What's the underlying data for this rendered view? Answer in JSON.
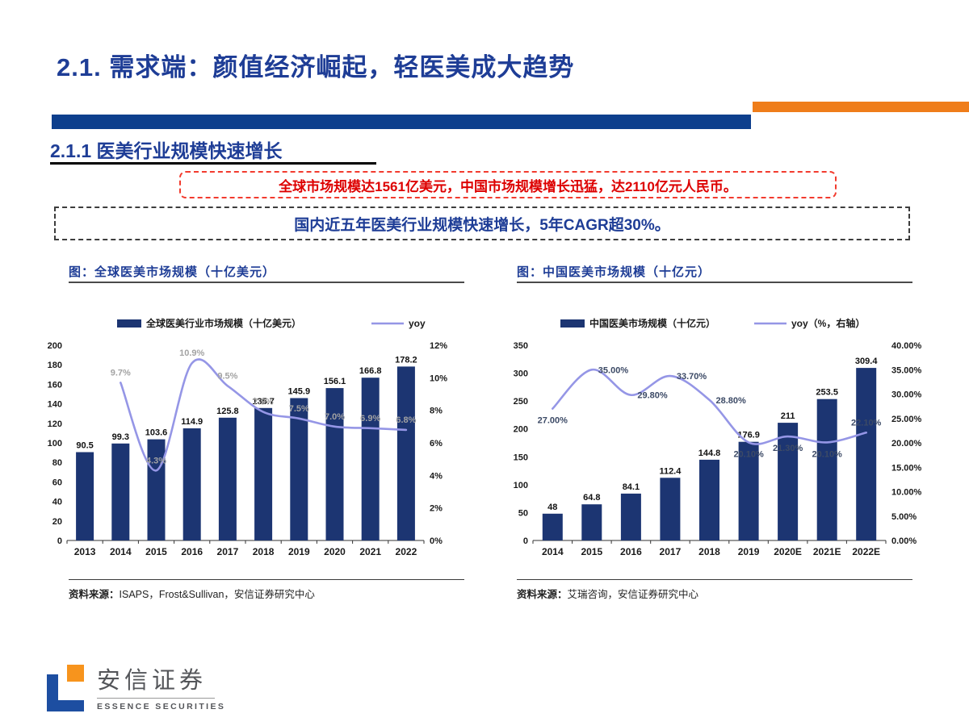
{
  "slide": {
    "title": "2.1. 需求端：颜值经济崛起，轻医美成大趋势",
    "section_heading": "2.1.1 医美行业规模快速增长",
    "callout_red": "全球市场规模达1561亿美元，中国市场规模增长迅猛，达2110亿元人民币。",
    "callout_navy": "国内近五年医美行业规模快速增长，5年CAGR超30%。",
    "footer_logo": {
      "name": "安信证券",
      "subname": "ESSENCE SECURITIES"
    },
    "colors": {
      "title_blue": "#1e3d96",
      "accent_bar_blue": "#0d3f8d",
      "accent_bar_orange": "#ef7d1a",
      "callout_red": "#dd0000",
      "bar_navy": "#1c3572",
      "line_periwinkle": "#9596e6"
    }
  },
  "chart_data": [
    {
      "type": "bar+line",
      "title": "图：全球医美市场规模（十亿美元）",
      "categories": [
        "2013",
        "2014",
        "2015",
        "2016",
        "2017",
        "2018",
        "2019",
        "2020",
        "2021",
        "2022"
      ],
      "bars": {
        "name": "全球医美行业市场规模（十亿美元）",
        "values": [
          90.5,
          99.3,
          103.6,
          114.9,
          125.8,
          135.7,
          145.9,
          156.1,
          166.8,
          178.2
        ],
        "labels": [
          "90.5",
          "99.3",
          "103.6",
          "114.9",
          "125.8",
          "135.7",
          "145.9",
          "156.1",
          "166.8",
          "178.2"
        ],
        "color": "#1c3572",
        "axis": "left"
      },
      "line": {
        "name": "yoy",
        "values": [
          null,
          9.7,
          4.3,
          10.9,
          9.5,
          7.9,
          7.5,
          7.0,
          6.9,
          6.8
        ],
        "labels": [
          "",
          "9.7%",
          "4.3%",
          "10.9%",
          "9.5%",
          "7.9%",
          "7.5%",
          "7.0%",
          "6.9%",
          "6.8%"
        ],
        "label_pos": [
          "",
          "above",
          "above",
          "above",
          "above",
          "above",
          "above",
          "above",
          "above",
          "above"
        ],
        "color": "#9596e6",
        "label_color": "#a3a3a3",
        "axis": "right"
      },
      "left_axis": {
        "min": 0,
        "max": 200,
        "step": 20,
        "decimals": 0,
        "suffix": ""
      },
      "right_axis": {
        "min": 0,
        "max": 12,
        "step": 2,
        "decimals": 0,
        "suffix": "%"
      },
      "grid": false,
      "legend_position": "top",
      "source_label": "资料来源：",
      "source": "ISAPS，Frost&Sullivan，安信证券研究中心"
    },
    {
      "type": "bar+line",
      "title": "图：中国医美市场规模（十亿元）",
      "categories": [
        "2014",
        "2015",
        "2016",
        "2017",
        "2018",
        "2019",
        "2020E",
        "2021E",
        "2022E"
      ],
      "bars": {
        "name": "中国医美市场规模（十亿元）",
        "values": [
          48,
          64.8,
          84.1,
          112.4,
          144.8,
          176.9,
          211,
          253.5,
          309.4
        ],
        "labels": [
          "48",
          "64.8",
          "84.1",
          "112.4",
          "144.8",
          "176.9",
          "211",
          "253.5",
          "309.4"
        ],
        "color": "#1c3572",
        "axis": "left"
      },
      "line": {
        "name": "yoy（%，右轴）",
        "values": [
          27.0,
          35.0,
          29.8,
          33.7,
          28.8,
          20.1,
          21.3,
          20.1,
          22.1
        ],
        "labels": [
          "27.00%",
          "35.00%",
          "29.80%",
          "33.70%",
          "28.80%",
          "20.10%",
          "21.30%",
          "20.10%",
          "22.10%"
        ],
        "label_pos": [
          "below",
          "right",
          "right",
          "right",
          "right",
          "below",
          "below",
          "below",
          "above"
        ],
        "color": "#9596e6",
        "label_color": "#3c4a66",
        "axis": "right"
      },
      "left_axis": {
        "min": 0,
        "max": 350,
        "step": 50,
        "decimals": 0,
        "suffix": ""
      },
      "right_axis": {
        "min": 0,
        "max": 40,
        "step": 5,
        "decimals": 2,
        "suffix": "%"
      },
      "grid": false,
      "legend_position": "top",
      "source_label": "资料来源：",
      "source": "艾瑞咨询，安信证券研究中心"
    }
  ]
}
